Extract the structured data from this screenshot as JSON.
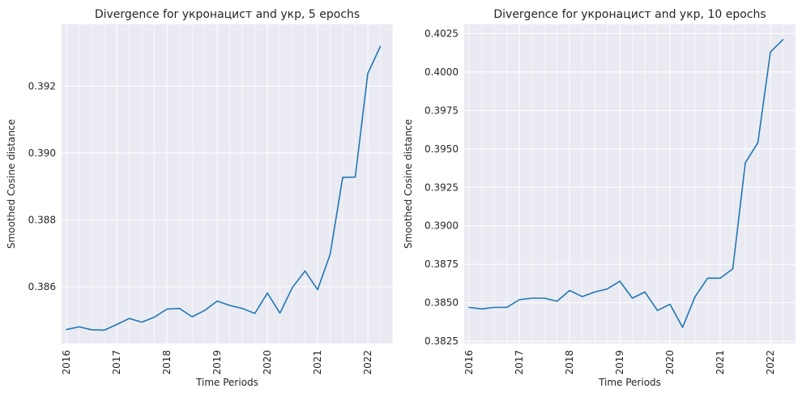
{
  "chart_data": [
    {
      "type": "line",
      "title": "Divergence for укронацист and укр, 5 epochs",
      "xlabel": "Time Periods",
      "ylabel": "Smoothed Cosine distance",
      "xlim": [
        2015.9,
        2022.5
      ],
      "ylim": [
        0.3843,
        0.39385
      ],
      "xticks": [
        2016,
        2017,
        2018,
        2019,
        2020,
        2021,
        2022
      ],
      "xtick_labels": [
        "2016",
        "2017",
        "2018",
        "2019",
        "2020",
        "2021",
        "2022"
      ],
      "yticks": [
        0.386,
        0.388,
        0.39,
        0.392
      ],
      "ytick_labels": [
        "0.386",
        "0.388",
        "0.390",
        "0.392"
      ],
      "grid": true,
      "x": [
        2016.0,
        2016.25,
        2016.5,
        2016.75,
        2017.0,
        2017.25,
        2017.5,
        2017.75,
        2018.0,
        2018.25,
        2018.5,
        2018.75,
        2019.0,
        2019.25,
        2019.5,
        2019.75,
        2020.0,
        2020.25,
        2020.5,
        2020.75,
        2021.0,
        2021.25,
        2021.5,
        2021.75,
        2022.0,
        2022.25
      ],
      "series": [
        {
          "color": "#1f77b4",
          "values": [
            0.38472,
            0.3848,
            0.38471,
            0.3847,
            0.38487,
            0.38505,
            0.38494,
            0.38509,
            0.38533,
            0.38535,
            0.3851,
            0.38529,
            0.38557,
            0.38544,
            0.38535,
            0.3852,
            0.38581,
            0.38521,
            0.38598,
            0.38647,
            0.38591,
            0.38697,
            0.38927,
            0.38928,
            0.39238,
            0.39319
          ]
        }
      ]
    },
    {
      "type": "line",
      "title": "Divergence for укронацист and укр, 10 epochs",
      "xlabel": "Time Periods",
      "ylabel": "Smoothed Cosine distance",
      "xlim": [
        2015.9,
        2022.5
      ],
      "ylim": [
        0.38235,
        0.4031
      ],
      "xticks": [
        2016,
        2017,
        2018,
        2019,
        2020,
        2021,
        2022
      ],
      "xtick_labels": [
        "2016",
        "2017",
        "2018",
        "2019",
        "2020",
        "2021",
        "2022"
      ],
      "yticks": [
        0.3825,
        0.385,
        0.3875,
        0.39,
        0.3925,
        0.395,
        0.3975,
        0.4,
        0.4025
      ],
      "ytick_labels": [
        "0.3825",
        "0.3850",
        "0.3875",
        "0.3900",
        "0.3925",
        "0.3950",
        "0.3975",
        "0.4000",
        "0.4025"
      ],
      "grid": true,
      "x": [
        2016.0,
        2016.25,
        2016.5,
        2016.75,
        2017.0,
        2017.25,
        2017.5,
        2017.75,
        2018.0,
        2018.25,
        2018.5,
        2018.75,
        2019.0,
        2019.25,
        2019.5,
        2019.75,
        2020.0,
        2020.25,
        2020.5,
        2020.75,
        2021.0,
        2021.25,
        2021.5,
        2021.75,
        2022.0,
        2022.25
      ],
      "series": [
        {
          "color": "#1f77b4",
          "values": [
            0.3847,
            0.3846,
            0.3847,
            0.3847,
            0.3852,
            0.3853,
            0.3853,
            0.3851,
            0.3858,
            0.3854,
            0.3857,
            0.3859,
            0.3864,
            0.3853,
            0.3857,
            0.3845,
            0.3849,
            0.3834,
            0.3854,
            0.3866,
            0.3866,
            0.3872,
            0.3941,
            0.3954,
            0.4013,
            0.4021
          ]
        }
      ]
    }
  ]
}
